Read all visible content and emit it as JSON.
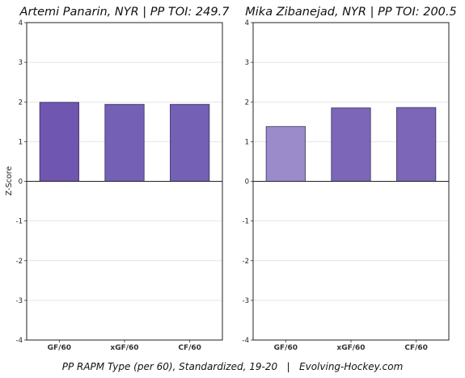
{
  "caption": "PP RAPM Type (per 60), Standardized, 19-20   |   Evolving-Hockey.com",
  "chart_data": [
    {
      "type": "bar",
      "title": "Artemi Panarin, NYR  |  PP TOI: 249.7",
      "categories": [
        "GF/60",
        "xGF/60",
        "CF/60"
      ],
      "values": [
        1.99,
        1.94,
        1.94
      ],
      "bar_colors": [
        "#6f56b0",
        "#7460b5",
        "#7460b5"
      ],
      "ylabel": "Z-Score",
      "xlabel": "",
      "ylim": [
        -4,
        4
      ],
      "yticks": [
        -4,
        -3,
        -2,
        -1,
        0,
        1,
        2,
        3,
        4
      ],
      "grid": true
    },
    {
      "type": "bar",
      "title": "Mika Zibanejad, NYR  |  PP TOI: 200.5",
      "categories": [
        "GF/60",
        "xGF/60",
        "CF/60"
      ],
      "values": [
        1.38,
        1.85,
        1.86
      ],
      "bar_colors": [
        "#9c8bcb",
        "#7b66b8",
        "#7b66b8"
      ],
      "ylabel": "",
      "xlabel": "",
      "ylim": [
        -4,
        4
      ],
      "yticks": [
        -4,
        -3,
        -2,
        -1,
        0,
        1,
        2,
        3,
        4
      ],
      "grid": true
    }
  ]
}
